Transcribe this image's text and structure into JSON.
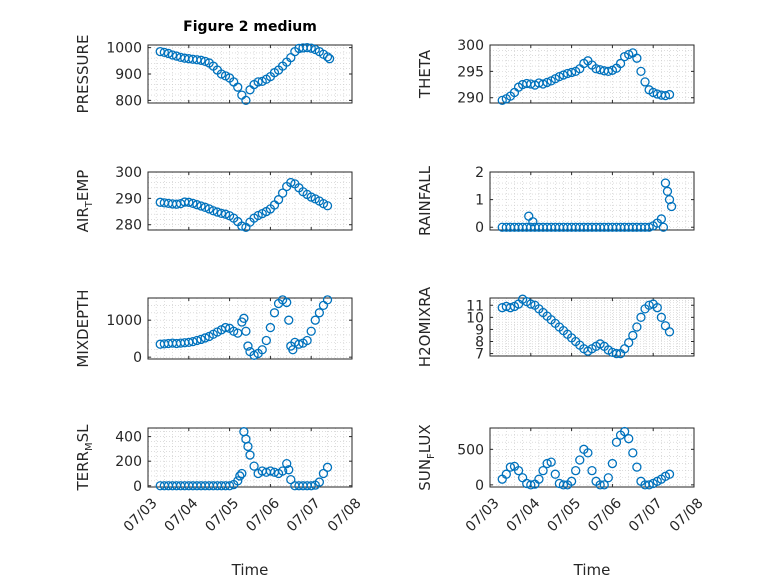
{
  "colors": {
    "marker": "#0072BD",
    "axis": "#262626",
    "grid": "#c8c8c8"
  },
  "chart_data": [
    {
      "type": "scatter",
      "id": "pressure",
      "title": "Figure 2 medium",
      "ylabel": "PRESSURE",
      "ylim": [
        790,
        1010
      ],
      "yticks": [
        800,
        900,
        1000
      ],
      "xlim": [
        0,
        5
      ],
      "grid": "major+minor",
      "x": [
        0.3,
        0.4,
        0.5,
        0.6,
        0.7,
        0.8,
        0.9,
        1.0,
        1.1,
        1.2,
        1.3,
        1.4,
        1.5,
        1.6,
        1.7,
        1.8,
        1.9,
        2.0,
        2.1,
        2.2,
        2.3,
        2.4,
        2.5,
        2.6,
        2.7,
        2.8,
        2.9,
        3.0,
        3.1,
        3.2,
        3.3,
        3.4,
        3.5,
        3.6,
        3.7,
        3.8,
        3.9,
        4.0,
        4.1,
        4.2,
        4.3,
        4.4,
        4.45
      ],
      "y": [
        985,
        982,
        978,
        972,
        968,
        963,
        960,
        958,
        956,
        954,
        952,
        948,
        942,
        930,
        915,
        900,
        893,
        885,
        870,
        850,
        820,
        800,
        840,
        860,
        870,
        872,
        880,
        890,
        905,
        915,
        930,
        945,
        962,
        985,
        997,
        999,
        1000,
        998,
        993,
        985,
        975,
        965,
        958
      ]
    },
    {
      "type": "scatter",
      "id": "theta",
      "ylabel": "THETA",
      "ylim": [
        289,
        300
      ],
      "yticks": [
        290,
        295,
        300
      ],
      "xlim": [
        0,
        5
      ],
      "grid": "major+minor",
      "x": [
        0.3,
        0.4,
        0.5,
        0.6,
        0.7,
        0.8,
        0.9,
        1.0,
        1.1,
        1.2,
        1.3,
        1.4,
        1.5,
        1.6,
        1.7,
        1.8,
        1.9,
        2.0,
        2.1,
        2.2,
        2.3,
        2.4,
        2.5,
        2.6,
        2.7,
        2.8,
        2.9,
        3.0,
        3.1,
        3.2,
        3.3,
        3.4,
        3.5,
        3.6,
        3.7,
        3.8,
        3.9,
        4.0,
        4.1,
        4.2,
        4.3,
        4.4
      ],
      "y": [
        289.5,
        289.8,
        290.3,
        291.0,
        292.0,
        292.5,
        292.7,
        292.6,
        292.4,
        292.8,
        292.6,
        292.9,
        293.2,
        293.6,
        294.0,
        294.3,
        294.6,
        294.8,
        295.0,
        295.5,
        296.5,
        297.0,
        296.2,
        295.5,
        295.3,
        295.1,
        295.0,
        295.2,
        295.6,
        296.5,
        297.8,
        298.2,
        298.5,
        297.5,
        295.0,
        293.0,
        291.5,
        291.0,
        290.7,
        290.5,
        290.4,
        290.6
      ]
    },
    {
      "type": "scatter",
      "id": "air_temp",
      "ylabel_parts": [
        "AIR",
        "T",
        "EMP"
      ],
      "ylim": [
        278,
        300
      ],
      "yticks": [
        280,
        290,
        300
      ],
      "xlim": [
        0,
        5
      ],
      "grid": "major+minor",
      "x": [
        0.3,
        0.4,
        0.5,
        0.6,
        0.7,
        0.8,
        0.9,
        1.0,
        1.1,
        1.2,
        1.3,
        1.4,
        1.5,
        1.6,
        1.7,
        1.8,
        1.9,
        2.0,
        2.1,
        2.2,
        2.3,
        2.4,
        2.5,
        2.6,
        2.7,
        2.8,
        2.9,
        3.0,
        3.1,
        3.2,
        3.3,
        3.4,
        3.5,
        3.6,
        3.7,
        3.8,
        3.9,
        4.0,
        4.1,
        4.2,
        4.3,
        4.4
      ],
      "y": [
        288.5,
        288.3,
        288.1,
        287.9,
        287.8,
        288.0,
        288.6,
        288.5,
        288.1,
        287.6,
        287.1,
        286.6,
        286.0,
        285.3,
        284.8,
        284.3,
        284.0,
        283.4,
        282.5,
        281.2,
        279.5,
        279.0,
        281.0,
        282.5,
        283.5,
        284.2,
        285.0,
        286.0,
        287.5,
        289.5,
        292.0,
        294.5,
        296.0,
        295.5,
        294.0,
        292.5,
        291.5,
        290.5,
        289.8,
        289.0,
        288.0,
        287.2
      ]
    },
    {
      "type": "scatter",
      "id": "rainfall",
      "ylabel": "RAINFALL",
      "ylim": [
        -0.1,
        2.0
      ],
      "yticks": [
        0,
        1,
        2
      ],
      "xlim": [
        0,
        5
      ],
      "grid": "major+minor",
      "x": [
        0.3,
        0.4,
        0.5,
        0.6,
        0.7,
        0.8,
        0.9,
        0.95,
        1.0,
        1.05,
        1.1,
        1.2,
        1.3,
        1.4,
        1.5,
        1.6,
        1.7,
        1.8,
        1.9,
        2.0,
        2.1,
        2.2,
        2.3,
        2.4,
        2.5,
        2.6,
        2.7,
        2.8,
        2.9,
        3.0,
        3.1,
        3.2,
        3.3,
        3.4,
        3.5,
        3.6,
        3.7,
        3.8,
        3.9,
        4.0,
        4.1,
        4.2,
        4.25,
        4.3,
        4.35,
        4.4,
        4.45
      ],
      "y": [
        0,
        0,
        0,
        0,
        0,
        0,
        0,
        0.4,
        0,
        0.2,
        0,
        0,
        0,
        0,
        0,
        0,
        0,
        0,
        0,
        0,
        0,
        0,
        0,
        0,
        0,
        0,
        0,
        0,
        0,
        0,
        0,
        0,
        0,
        0,
        0,
        0,
        0,
        0,
        0,
        0.05,
        0.15,
        0.3,
        0,
        1.6,
        1.3,
        1.0,
        0.75
      ]
    },
    {
      "type": "scatter",
      "id": "mixdepth",
      "ylabel": "MIXDEPTH",
      "ylim": [
        -50,
        1600
      ],
      "yticks": [
        0,
        1000
      ],
      "xlim": [
        0,
        5
      ],
      "grid": "major+minor",
      "x": [
        0.3,
        0.4,
        0.5,
        0.6,
        0.7,
        0.8,
        0.9,
        1.0,
        1.1,
        1.2,
        1.3,
        1.4,
        1.5,
        1.6,
        1.7,
        1.8,
        1.9,
        2.0,
        2.1,
        2.2,
        2.3,
        2.35,
        2.4,
        2.45,
        2.5,
        2.6,
        2.7,
        2.8,
        2.9,
        3.0,
        3.1,
        3.2,
        3.3,
        3.4,
        3.45,
        3.5,
        3.55,
        3.6,
        3.7,
        3.8,
        3.9,
        4.0,
        4.1,
        4.2,
        4.3,
        4.4
      ],
      "y": [
        350,
        360,
        370,
        380,
        370,
        380,
        390,
        400,
        420,
        450,
        480,
        520,
        560,
        620,
        680,
        740,
        800,
        780,
        700,
        650,
        950,
        1050,
        700,
        300,
        150,
        50,
        100,
        200,
        450,
        800,
        1200,
        1450,
        1550,
        1480,
        1000,
        300,
        200,
        400,
        350,
        380,
        450,
        700,
        1000,
        1200,
        1400,
        1550
      ]
    },
    {
      "type": "scatter",
      "id": "h2omixra",
      "ylabel": "H2OMIXRA",
      "ylim": [
        6.8,
        11.6
      ],
      "yticks": [
        7,
        8,
        9,
        10,
        11
      ],
      "xlim": [
        0,
        5
      ],
      "grid": "major+minor",
      "x": [
        0.3,
        0.4,
        0.5,
        0.6,
        0.7,
        0.8,
        0.9,
        1.0,
        1.1,
        1.2,
        1.3,
        1.4,
        1.5,
        1.6,
        1.7,
        1.8,
        1.9,
        2.0,
        2.1,
        2.2,
        2.3,
        2.4,
        2.5,
        2.6,
        2.7,
        2.8,
        2.9,
        3.0,
        3.1,
        3.2,
        3.3,
        3.4,
        3.5,
        3.6,
        3.7,
        3.8,
        3.9,
        4.0,
        4.1,
        4.2,
        4.3,
        4.4
      ],
      "y": [
        10.8,
        10.9,
        10.8,
        10.9,
        11.1,
        11.5,
        11.3,
        11.1,
        11.0,
        10.7,
        10.4,
        10.1,
        9.8,
        9.5,
        9.2,
        8.9,
        8.6,
        8.3,
        8.0,
        7.7,
        7.4,
        7.2,
        7.4,
        7.6,
        7.8,
        7.6,
        7.3,
        7.1,
        7.0,
        7.0,
        7.4,
        7.9,
        8.5,
        9.2,
        10.0,
        10.7,
        11.0,
        11.1,
        10.8,
        10.0,
        9.3,
        8.8
      ]
    },
    {
      "type": "scatter",
      "id": "terr_msl",
      "ylabel_parts": [
        "TERR",
        "M",
        "SL"
      ],
      "ylim": [
        -10,
        470
      ],
      "yticks": [
        0,
        200,
        400
      ],
      "xlim": [
        0,
        5
      ],
      "grid": "major+minor",
      "xlabel": "Time",
      "xticks": [
        "07/03",
        "07/04",
        "07/05",
        "07/06",
        "07/07",
        "07/08"
      ],
      "x": [
        0.3,
        0.4,
        0.5,
        0.6,
        0.7,
        0.8,
        0.9,
        1.0,
        1.1,
        1.2,
        1.3,
        1.4,
        1.5,
        1.6,
        1.7,
        1.8,
        1.9,
        2.0,
        2.1,
        2.2,
        2.25,
        2.3,
        2.35,
        2.4,
        2.45,
        2.5,
        2.6,
        2.7,
        2.8,
        2.9,
        3.0,
        3.1,
        3.2,
        3.3,
        3.4,
        3.45,
        3.5,
        3.6,
        3.7,
        3.8,
        3.9,
        4.0,
        4.1,
        4.2,
        4.3,
        4.4
      ],
      "y": [
        0,
        0,
        0,
        0,
        0,
        0,
        0,
        0,
        0,
        0,
        0,
        0,
        0,
        0,
        0,
        0,
        0,
        0,
        10,
        40,
        80,
        100,
        440,
        380,
        320,
        250,
        160,
        100,
        120,
        110,
        120,
        110,
        100,
        120,
        180,
        130,
        50,
        0,
        0,
        0,
        0,
        0,
        5,
        30,
        100,
        150
      ]
    },
    {
      "type": "scatter",
      "id": "sun_flux",
      "ylabel_parts": [
        "SUN",
        "F",
        "LUX"
      ],
      "ylim": [
        -30,
        800
      ],
      "yticks": [
        0,
        500
      ],
      "xlim": [
        0,
        5
      ],
      "grid": "major+minor",
      "xlabel": "Time",
      "xticks": [
        "07/03",
        "07/04",
        "07/05",
        "07/06",
        "07/07",
        "07/08"
      ],
      "x": [
        0.3,
        0.4,
        0.5,
        0.6,
        0.7,
        0.8,
        0.9,
        1.0,
        1.1,
        1.2,
        1.3,
        1.4,
        1.5,
        1.6,
        1.7,
        1.8,
        1.9,
        2.0,
        2.1,
        2.2,
        2.3,
        2.4,
        2.5,
        2.6,
        2.7,
        2.8,
        2.9,
        3.0,
        3.1,
        3.2,
        3.3,
        3.4,
        3.5,
        3.6,
        3.7,
        3.8,
        3.9,
        4.0,
        4.1,
        4.2,
        4.3,
        4.4
      ],
      "y": [
        80,
        150,
        250,
        260,
        200,
        100,
        20,
        0,
        10,
        80,
        200,
        300,
        320,
        150,
        20,
        0,
        0,
        50,
        200,
        350,
        500,
        450,
        200,
        50,
        0,
        0,
        100,
        300,
        600,
        700,
        750,
        650,
        450,
        250,
        50,
        0,
        0,
        20,
        50,
        80,
        120,
        150
      ]
    }
  ]
}
